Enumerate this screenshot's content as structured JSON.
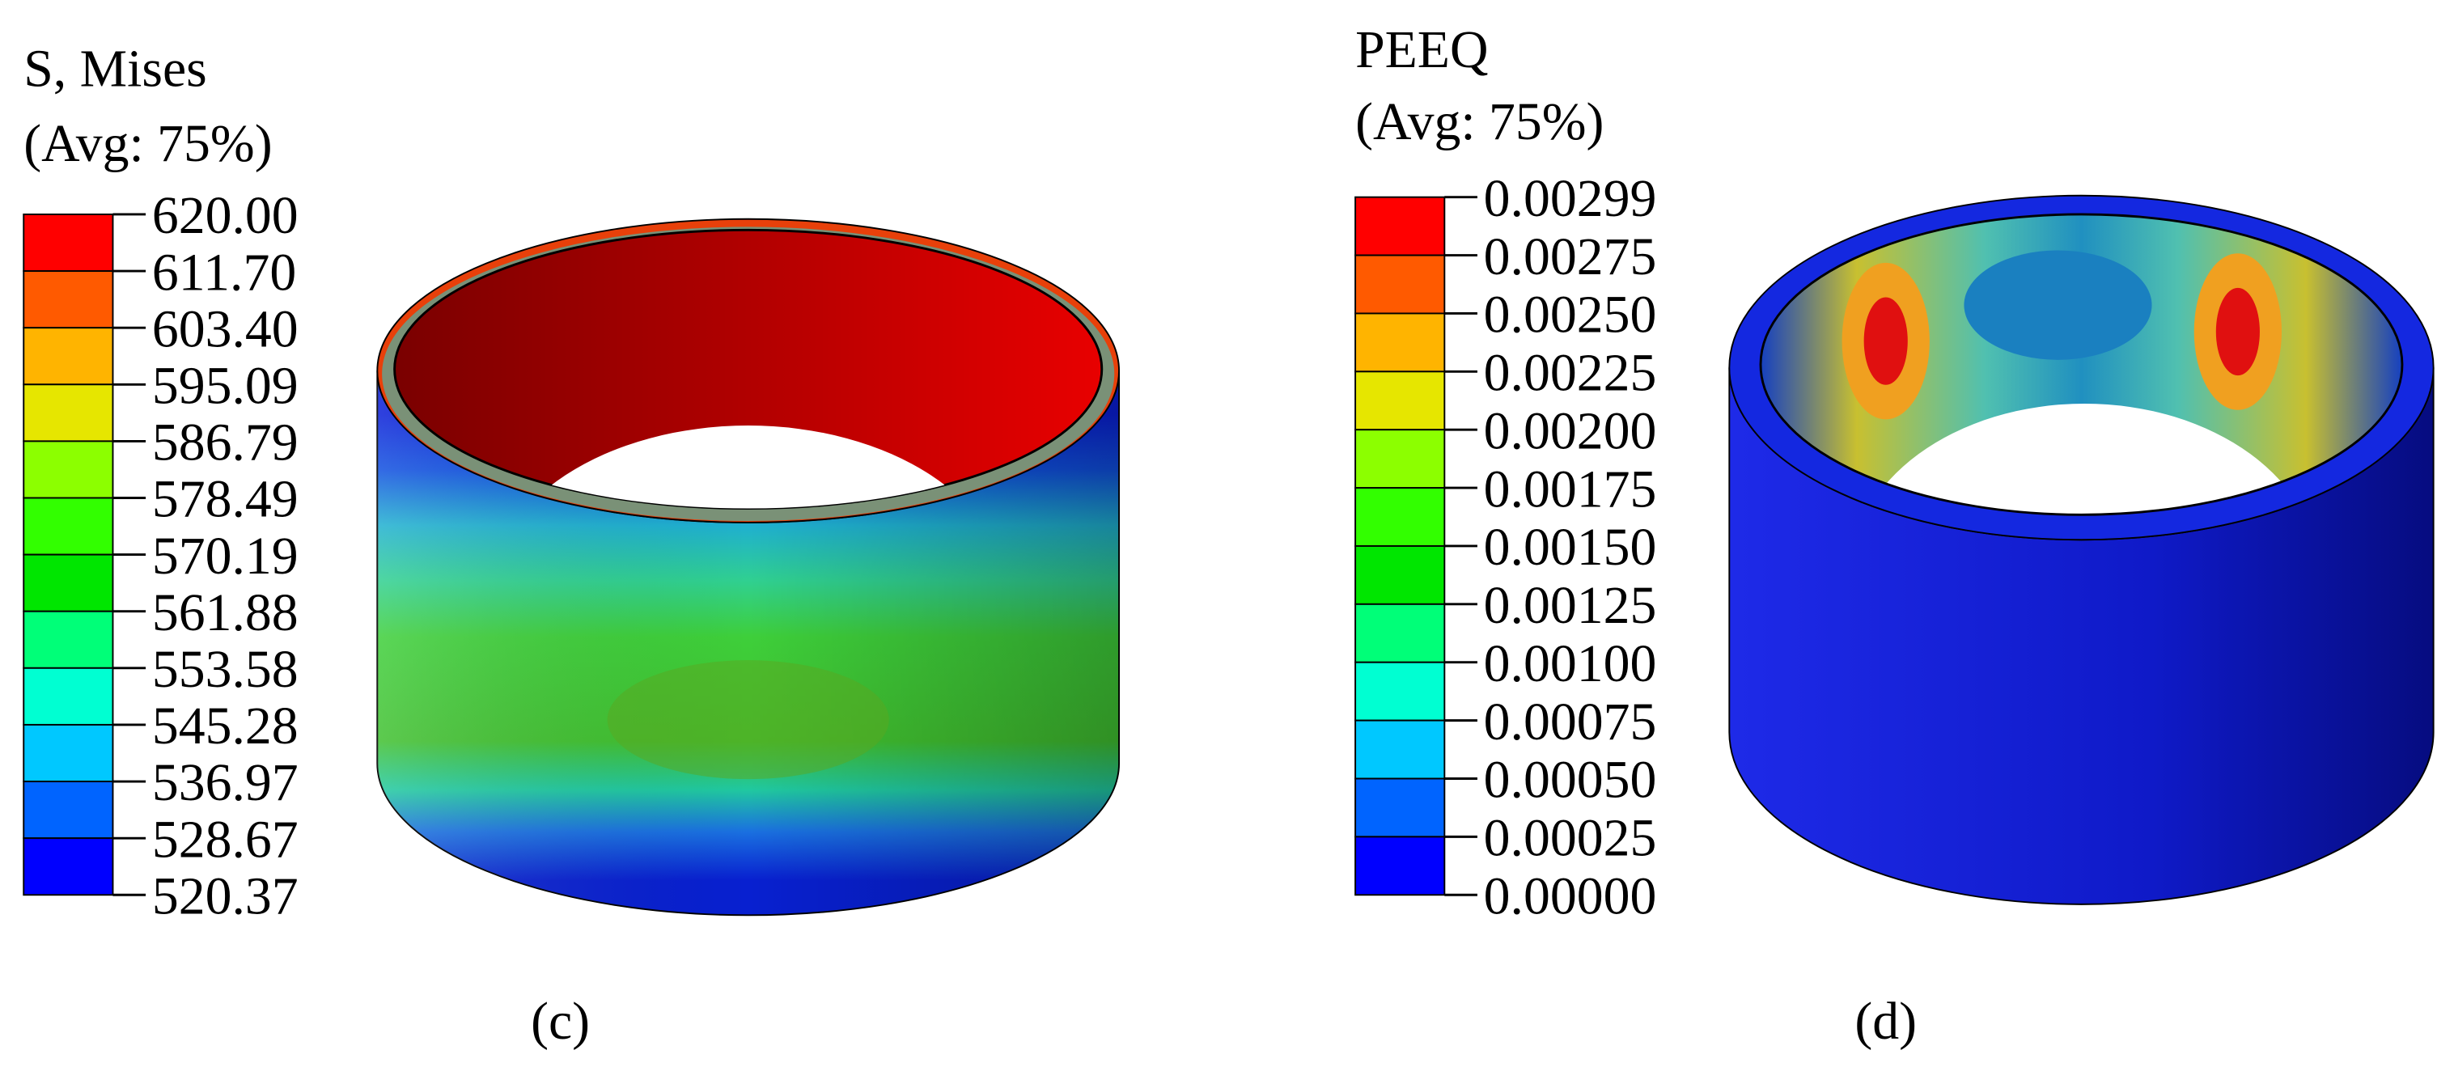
{
  "panels": [
    {
      "legend": {
        "title": "S, Mises",
        "subtitle": "(Avg: 75%)",
        "labels": [
          "620.00",
          "611.70",
          "603.40",
          "595.09",
          "586.79",
          "578.49",
          "570.19",
          "561.88",
          "553.58",
          "545.28",
          "536.97",
          "528.67",
          "520.37"
        ]
      },
      "label": "(c)"
    },
    {
      "legend": {
        "title": "PEEQ",
        "subtitle": "(Avg: 75%)",
        "labels": [
          "0.00299",
          "0.00275",
          "0.00250",
          "0.00225",
          "0.00200",
          "0.00175",
          "0.00150",
          "0.00125",
          "0.00100",
          "0.00075",
          "0.00050",
          "0.00025",
          "0.00000"
        ]
      },
      "label": "(d)"
    }
  ]
}
